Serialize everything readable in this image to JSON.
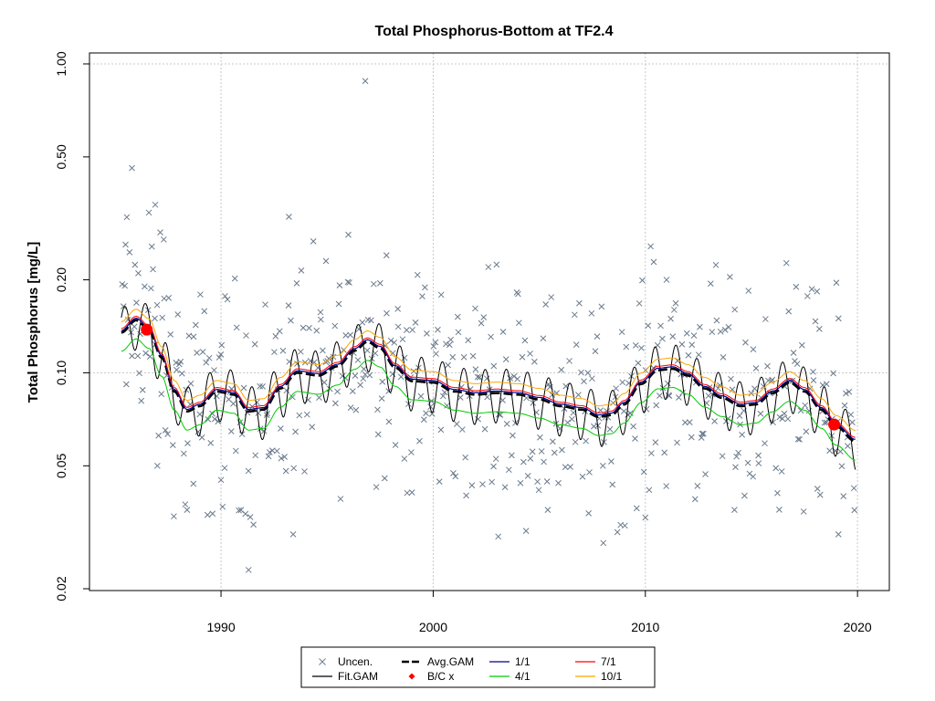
{
  "chart_data": {
    "type": "scatter",
    "title": "Total Phosphorus-Bottom at TF2.4",
    "xlabel": "",
    "ylabel": "Total Phosphorus [mg/L]",
    "xlim": [
      1983.8,
      2021.5
    ],
    "ylim": [
      0.02,
      1.0
    ],
    "yscale": "log",
    "grid": true,
    "legend_position": "bottom-center",
    "x_ticks": [
      1990,
      2000,
      2010,
      2020
    ],
    "x_tick_labels": [
      "1990",
      "2000",
      "2010",
      "2020"
    ],
    "y_ticks": [
      0.02,
      0.05,
      0.1,
      0.2,
      0.5,
      1.0
    ],
    "y_tick_labels": [
      "0.02",
      "0.05",
      "0.10",
      "0.20",
      "0.50",
      "1.00"
    ],
    "legend": [
      {
        "label": "Uncen.",
        "type": "cross",
        "color": "#6B7B8C"
      },
      {
        "label": "Avg.GAM",
        "type": "dashed",
        "color": "#000000"
      },
      {
        "label": "1/1",
        "type": "line",
        "color": "#00008B"
      },
      {
        "label": "7/1",
        "type": "line",
        "color": "#FF0000"
      },
      {
        "label": "Fit.GAM",
        "type": "line",
        "color": "#000000"
      },
      {
        "label": "B/C x",
        "type": "diamond",
        "color": "#FF0000"
      },
      {
        "label": "4/1",
        "type": "line",
        "color": "#00CC00"
      },
      {
        "label": "10/1",
        "type": "line",
        "color": "#FFA500"
      }
    ],
    "baseline_trend": {
      "x": [
        1985.3,
        1986.0,
        1986.6,
        1987.2,
        1987.8,
        1988.4,
        1989.0,
        1989.8,
        1990.6,
        1991.3,
        1992.0,
        1992.8,
        1993.6,
        1994.6,
        1995.5,
        1996.3,
        1996.9,
        1997.5,
        1998.2,
        1999.0,
        2000.0,
        2001.0,
        2002.0,
        2003.0,
        2004.0,
        2005.0,
        2006.0,
        2007.0,
        2007.8,
        2008.4,
        2009.0,
        2009.8,
        2010.6,
        2011.3,
        2012.0,
        2012.8,
        2013.6,
        2014.5,
        2015.2,
        2016.0,
        2016.8,
        2017.5,
        2018.3,
        2019.0,
        2019.9
      ],
      "values": [
        0.135,
        0.148,
        0.138,
        0.112,
        0.087,
        0.075,
        0.078,
        0.087,
        0.085,
        0.075,
        0.076,
        0.089,
        0.1,
        0.098,
        0.105,
        0.118,
        0.126,
        0.12,
        0.104,
        0.094,
        0.093,
        0.087,
        0.085,
        0.086,
        0.085,
        0.082,
        0.078,
        0.076,
        0.072,
        0.073,
        0.079,
        0.092,
        0.102,
        0.103,
        0.098,
        0.089,
        0.083,
        0.078,
        0.079,
        0.086,
        0.093,
        0.087,
        0.076,
        0.067,
        0.06
      ]
    },
    "series": [
      {
        "name": "Fit.GAM",
        "style": "seasonal",
        "color": "#000000",
        "width": 1,
        "ratio": 1.0,
        "amplitude": 0.2
      },
      {
        "name": "Avg.GAM",
        "style": "dashed",
        "color": "#000000",
        "width": 2.6,
        "ratio": 1.0
      },
      {
        "name": "1/1",
        "color": "#00008B",
        "width": 1.2,
        "ratio": 1.015
      },
      {
        "name": "7/1",
        "color": "#FF0000",
        "width": 1,
        "ratio": 1.03
      },
      {
        "name": "4/1",
        "color": "#00CC00",
        "width": 1,
        "ratio": 0.87
      },
      {
        "name": "10/1",
        "color": "#FFA500",
        "width": 1,
        "ratio": 1.085
      }
    ],
    "bc_points": {
      "x": [
        1986.5,
        2018.9
      ],
      "values": [
        0.138,
        0.068
      ]
    },
    "outlier_points": {
      "x": [
        1985.5,
        1985.8,
        1986.1,
        1986.6,
        1986.9,
        1987.3,
        1988.4,
        1989.6,
        1991.3,
        1993.2,
        1993.4,
        1996.0,
        1996.8,
        1997.8,
        2002.6,
        1999.0,
        2004.0,
        2005.4,
        2011.0,
        2014.2,
        2019.1,
        2010.0,
        1987.0,
        1990.0,
        2008.0
      ],
      "values": [
        0.26,
        0.46,
        0.21,
        0.33,
        0.35,
        0.27,
        0.036,
        0.035,
        0.023,
        0.32,
        0.03,
        0.28,
        0.88,
        0.24,
        0.22,
        0.041,
        0.18,
        0.036,
        0.2,
        0.036,
        0.03,
        0.034,
        0.05,
        0.045,
        0.05
      ]
    }
  }
}
